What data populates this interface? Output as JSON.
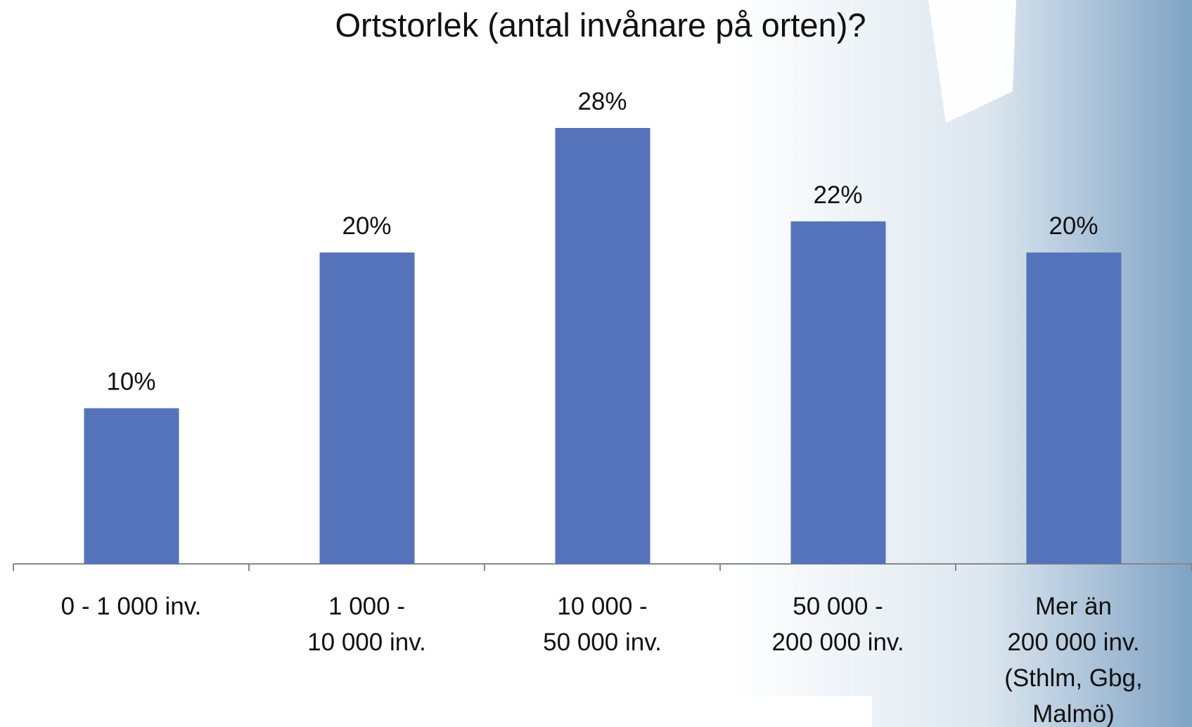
{
  "chart_data": {
    "type": "bar",
    "title": "Ortstorlek (antal invånare på orten)?",
    "categories": [
      [
        "0 - 1 000 inv."
      ],
      [
        "1 000 -",
        "10 000 inv."
      ],
      [
        "10 000 -",
        "50 000 inv."
      ],
      [
        "50 000 -",
        "200 000 inv."
      ],
      [
        "Mer än",
        "200 000 inv.",
        "(Sthlm, Gbg,",
        "Malmö)"
      ]
    ],
    "values": [
      10,
      20,
      28,
      22,
      20
    ],
    "value_labels": [
      "10%",
      "20%",
      "28%",
      "22%",
      "20%"
    ],
    "color": "#5573bb"
  }
}
